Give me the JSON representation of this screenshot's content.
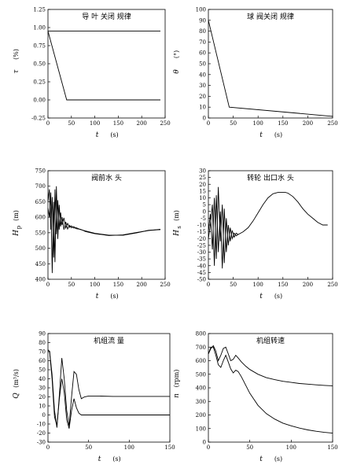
{
  "chart_data": [
    {
      "type": "line",
      "title": "导 叶 关闭 规律",
      "xlabel": "t",
      "xunit": "(s)",
      "ylabel": "τ",
      "yunit": "(%)",
      "xlim": [
        0,
        250
      ],
      "ylim": [
        -0.25,
        1.25
      ],
      "xticks": [
        0,
        50,
        100,
        150,
        200,
        250
      ],
      "yticks": [
        -0.25,
        0.0,
        0.25,
        0.5,
        0.75,
        1.0,
        1.25
      ],
      "ytick_labels": [
        "-0.25",
        "0.00",
        "0.25",
        "0.50",
        "0.75",
        "1.00",
        "1.25"
      ],
      "series": [
        {
          "x": [
            0,
            240
          ],
          "y": [
            0.95,
            0.95
          ]
        },
        {
          "x": [
            0,
            40,
            240
          ],
          "y": [
            0.95,
            0.0,
            0.0
          ]
        }
      ]
    },
    {
      "type": "line",
      "title": "球 阀关闭 规律",
      "xlabel": "t",
      "xunit": "(s)",
      "ylabel": "θ",
      "yunit": "(°)",
      "xlim": [
        0,
        250
      ],
      "ylim": [
        0,
        100
      ],
      "xticks": [
        0,
        50,
        100,
        150,
        200,
        250
      ],
      "yticks": [
        0,
        10,
        20,
        30,
        40,
        50,
        60,
        70,
        80,
        90,
        100
      ],
      "series": [
        {
          "x": [
            0,
            42,
            250
          ],
          "y": [
            90,
            10,
            1.5
          ]
        }
      ]
    },
    {
      "type": "line",
      "title": "阀前水 头",
      "xlabel": "t",
      "xunit": "(s)",
      "ylabel": "H",
      "ylabel_sub": "p",
      "yunit": "(m)",
      "xlim": [
        0,
        250
      ],
      "ylim": [
        400,
        750
      ],
      "xticks": [
        0,
        50,
        100,
        150,
        200,
        250
      ],
      "yticks": [
        400,
        450,
        500,
        550,
        600,
        650,
        700,
        750
      ],
      "series": [
        {
          "x": [
            0,
            3,
            6,
            9,
            12,
            15,
            18,
            21,
            24,
            27,
            30,
            34,
            38,
            42,
            46,
            50,
            55,
            60,
            70,
            80,
            100,
            130,
            160,
            190,
            215,
            240
          ],
          "y": [
            650,
            690,
            560,
            665,
            470,
            690,
            545,
            655,
            560,
            615,
            575,
            598,
            565,
            580,
            568,
            572,
            565,
            566,
            560,
            556,
            548,
            542,
            542,
            550,
            558,
            560
          ]
        },
        {
          "x": [
            0,
            3,
            6,
            9,
            12,
            15,
            18,
            21,
            24,
            27,
            30,
            34,
            38,
            42,
            46,
            50,
            55,
            60,
            70,
            80,
            100,
            130,
            160,
            190,
            215,
            240
          ],
          "y": [
            630,
            600,
            680,
            420,
            650,
            455,
            700,
            530,
            640,
            570,
            600,
            560,
            585,
            562,
            574,
            566,
            570,
            563,
            561,
            554,
            547,
            541,
            543,
            551,
            557,
            561
          ]
        }
      ]
    },
    {
      "type": "line",
      "title": "转轮 出口水 头",
      "xlabel": "t",
      "xunit": "(s)",
      "ylabel": "H",
      "ylabel_sub": "s",
      "yunit": "(m)",
      "xlim": [
        0,
        250
      ],
      "ylim": [
        -50,
        30
      ],
      "xticks": [
        0,
        50,
        100,
        150,
        200,
        250
      ],
      "yticks": [
        -50,
        -45,
        -40,
        -35,
        -30,
        -25,
        -20,
        -15,
        -10,
        -5,
        0,
        5,
        10,
        15,
        20,
        25,
        30
      ],
      "series": [
        {
          "x": [
            0,
            4,
            8,
            12,
            16,
            20,
            24,
            28,
            32,
            36,
            40,
            44,
            48,
            52,
            56,
            60,
            70,
            80,
            90,
            100,
            110,
            120,
            130,
            140,
            150,
            155,
            160,
            170,
            180,
            190,
            200,
            210,
            220,
            230,
            240
          ],
          "y": [
            -15,
            -2,
            -28,
            10,
            -35,
            18,
            -22,
            5,
            -38,
            -5,
            -25,
            -12,
            -20,
            -16,
            -18,
            -17,
            -15,
            -12,
            -7,
            -1,
            5,
            10,
            13,
            14,
            14,
            14,
            13.5,
            11,
            7,
            2,
            -2,
            -5,
            -8,
            -10,
            -10
          ]
        },
        {
          "x": [
            0,
            4,
            8,
            12,
            16,
            20,
            24,
            28,
            32,
            36,
            40,
            44,
            48,
            52,
            56,
            60
          ],
          "y": [
            -20,
            -10,
            5,
            -40,
            12,
            -30,
            0,
            -42,
            2,
            -30,
            -10,
            -22,
            -14,
            -19,
            -16,
            -17
          ]
        }
      ]
    },
    {
      "type": "line",
      "title": "机组流 量",
      "xlabel": "t",
      "xunit": "(s)",
      "ylabel": "Q",
      "yunit": "(m³/s)",
      "xlim": [
        0,
        150
      ],
      "ylim": [
        -30,
        90
      ],
      "xticks": [
        0,
        50,
        100,
        150
      ],
      "yticks": [
        -30,
        -20,
        -10,
        0,
        10,
        20,
        30,
        40,
        50,
        60,
        70,
        80,
        90
      ],
      "series": [
        {
          "x": [
            0,
            2,
            5,
            8,
            11,
            14,
            17,
            20,
            23,
            26,
            29,
            32,
            35,
            38,
            41,
            45,
            50,
            60,
            80,
            100,
            120,
            140,
            150
          ],
          "y": [
            72,
            70,
            45,
            5,
            -14,
            22,
            63,
            40,
            5,
            -12,
            20,
            48,
            45,
            28,
            18,
            20,
            21,
            21,
            20.5,
            20.5,
            20.5,
            20.5,
            20.5
          ]
        },
        {
          "x": [
            0,
            2,
            5,
            8,
            11,
            14,
            17,
            20,
            23,
            26,
            29,
            32,
            35,
            38,
            41,
            45,
            50,
            60,
            80,
            100,
            120,
            140,
            150
          ],
          "y": [
            72,
            70,
            40,
            -2,
            -12,
            18,
            40,
            25,
            -5,
            -15,
            5,
            18,
            8,
            2,
            0,
            0,
            0,
            0,
            0,
            0,
            0,
            0,
            0
          ]
        }
      ]
    },
    {
      "type": "line",
      "title": "机组转速",
      "xlabel": "t",
      "xunit": "(s)",
      "ylabel": "n",
      "yunit": "(rpm)",
      "xlim": [
        0,
        150
      ],
      "ylim": [
        0,
        800
      ],
      "xticks": [
        0,
        50,
        100,
        150
      ],
      "yticks": [
        0,
        100,
        200,
        300,
        400,
        500,
        600,
        700,
        800
      ],
      "series": [
        {
          "x": [
            0,
            3,
            6,
            9,
            12,
            15,
            18,
            21,
            24,
            27,
            30,
            33,
            36,
            40,
            45,
            50,
            60,
            70,
            80,
            90,
            100,
            110,
            120,
            130,
            140,
            150
          ],
          "y": [
            650,
            690,
            710,
            670,
            600,
            640,
            690,
            700,
            650,
            600,
            610,
            640,
            620,
            590,
            560,
            535,
            500,
            475,
            460,
            448,
            440,
            432,
            427,
            422,
            418,
            415
          ]
        },
        {
          "x": [
            0,
            3,
            6,
            9,
            12,
            15,
            18,
            21,
            24,
            27,
            30,
            33,
            36,
            40,
            45,
            50,
            60,
            70,
            80,
            90,
            100,
            110,
            120,
            130,
            140,
            150
          ],
          "y": [
            650,
            700,
            700,
            640,
            570,
            550,
            600,
            640,
            590,
            540,
            510,
            530,
            520,
            480,
            420,
            360,
            270,
            210,
            170,
            140,
            120,
            103,
            90,
            80,
            72,
            66
          ]
        }
      ]
    }
  ]
}
